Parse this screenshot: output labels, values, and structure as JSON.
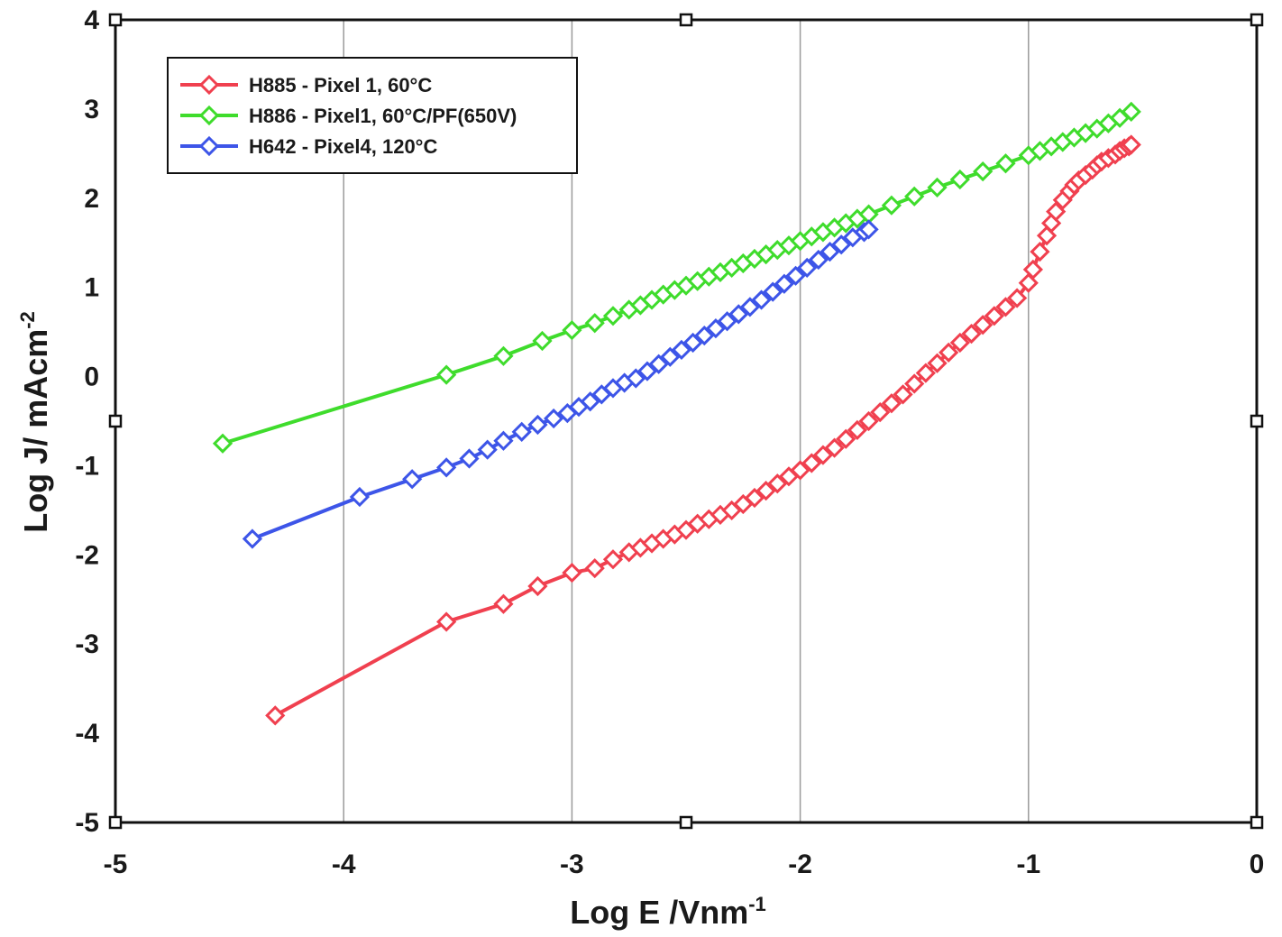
{
  "chart_data": {
    "type": "line",
    "xlabel": "Log E /Vnm",
    "xlabel_sup": "-1",
    "ylabel": "Log J/ mAcm",
    "ylabel_sup": "-2",
    "xlim": [
      -5,
      0
    ],
    "ylim": [
      -5,
      4
    ],
    "x_ticks": [
      "-5",
      "-4",
      "-3",
      "-2",
      "-1",
      "0"
    ],
    "y_ticks": [
      "4",
      "3",
      "2",
      "1",
      "0",
      "-1",
      "-2",
      "-3",
      "-4",
      "-5"
    ],
    "grid": "vertical",
    "legend_position": "top-left",
    "series": [
      {
        "name": "H885 - Pixel 1, 60°C",
        "color": "#f0404f",
        "x": [
          -4.3,
          -3.55,
          -3.3,
          -3.15,
          -3.0,
          -2.9,
          -2.82,
          -2.75,
          -2.7,
          -2.65,
          -2.6,
          -2.55,
          -2.5,
          -2.45,
          -2.4,
          -2.35,
          -2.3,
          -2.25,
          -2.2,
          -2.15,
          -2.1,
          -2.05,
          -2.0,
          -1.95,
          -1.9,
          -1.85,
          -1.8,
          -1.75,
          -1.7,
          -1.65,
          -1.6,
          -1.55,
          -1.5,
          -1.45,
          -1.4,
          -1.35,
          -1.3,
          -1.25,
          -1.2,
          -1.15,
          -1.1,
          -1.05,
          -1.0,
          -0.98,
          -0.95,
          -0.92,
          -0.9,
          -0.88,
          -0.85,
          -0.82,
          -0.8,
          -0.78,
          -0.75,
          -0.72,
          -0.7,
          -0.68,
          -0.65,
          -0.62,
          -0.6,
          -0.58,
          -0.56,
          -0.55
        ],
        "y": [
          -3.8,
          -2.75,
          -2.55,
          -2.35,
          -2.2,
          -2.15,
          -2.05,
          -1.97,
          -1.92,
          -1.87,
          -1.82,
          -1.77,
          -1.72,
          -1.65,
          -1.6,
          -1.55,
          -1.5,
          -1.43,
          -1.36,
          -1.28,
          -1.2,
          -1.12,
          -1.05,
          -0.97,
          -0.88,
          -0.8,
          -0.7,
          -0.6,
          -0.5,
          -0.4,
          -0.3,
          -0.2,
          -0.08,
          0.04,
          0.15,
          0.27,
          0.38,
          0.48,
          0.58,
          0.68,
          0.78,
          0.88,
          1.05,
          1.2,
          1.4,
          1.58,
          1.72,
          1.85,
          1.98,
          2.08,
          2.15,
          2.2,
          2.26,
          2.32,
          2.37,
          2.41,
          2.45,
          2.49,
          2.53,
          2.56,
          2.58,
          2.6
        ]
      },
      {
        "name": "H886 - Pixel1, 60°C/PF(650V)",
        "color": "#3fdc2c",
        "x": [
          -4.53,
          -3.55,
          -3.3,
          -3.13,
          -3.0,
          -2.9,
          -2.82,
          -2.75,
          -2.7,
          -2.65,
          -2.6,
          -2.55,
          -2.5,
          -2.45,
          -2.4,
          -2.35,
          -2.3,
          -2.25,
          -2.2,
          -2.15,
          -2.1,
          -2.05,
          -2.0,
          -1.95,
          -1.9,
          -1.85,
          -1.8,
          -1.75,
          -1.7,
          -1.6,
          -1.5,
          -1.4,
          -1.3,
          -1.2,
          -1.1,
          -1.0,
          -0.95,
          -0.9,
          -0.85,
          -0.8,
          -0.75,
          -0.7,
          -0.65,
          -0.6,
          -0.55
        ],
        "y": [
          -0.75,
          0.02,
          0.23,
          0.4,
          0.52,
          0.6,
          0.68,
          0.75,
          0.8,
          0.86,
          0.92,
          0.97,
          1.02,
          1.07,
          1.12,
          1.17,
          1.22,
          1.27,
          1.32,
          1.37,
          1.42,
          1.47,
          1.52,
          1.57,
          1.62,
          1.67,
          1.72,
          1.77,
          1.82,
          1.92,
          2.02,
          2.12,
          2.21,
          2.3,
          2.39,
          2.48,
          2.53,
          2.58,
          2.63,
          2.68,
          2.73,
          2.78,
          2.84,
          2.9,
          2.97
        ]
      },
      {
        "name": "H642 - Pixel4, 120°C",
        "color": "#3d55e8",
        "x": [
          -4.4,
          -3.93,
          -3.7,
          -3.55,
          -3.45,
          -3.37,
          -3.3,
          -3.22,
          -3.15,
          -3.08,
          -3.02,
          -2.97,
          -2.92,
          -2.87,
          -2.82,
          -2.77,
          -2.72,
          -2.67,
          -2.62,
          -2.57,
          -2.52,
          -2.47,
          -2.42,
          -2.37,
          -2.32,
          -2.27,
          -2.22,
          -2.17,
          -2.12,
          -2.07,
          -2.02,
          -1.97,
          -1.92,
          -1.87,
          -1.82,
          -1.77,
          -1.72,
          -1.7
        ],
        "y": [
          -1.82,
          -1.35,
          -1.15,
          -1.02,
          -0.92,
          -0.82,
          -0.72,
          -0.62,
          -0.54,
          -0.47,
          -0.41,
          -0.34,
          -0.28,
          -0.2,
          -0.13,
          -0.07,
          -0.02,
          0.06,
          0.14,
          0.22,
          0.3,
          0.38,
          0.46,
          0.54,
          0.62,
          0.7,
          0.78,
          0.86,
          0.95,
          1.04,
          1.13,
          1.22,
          1.31,
          1.4,
          1.48,
          1.56,
          1.62,
          1.65
        ]
      }
    ]
  }
}
